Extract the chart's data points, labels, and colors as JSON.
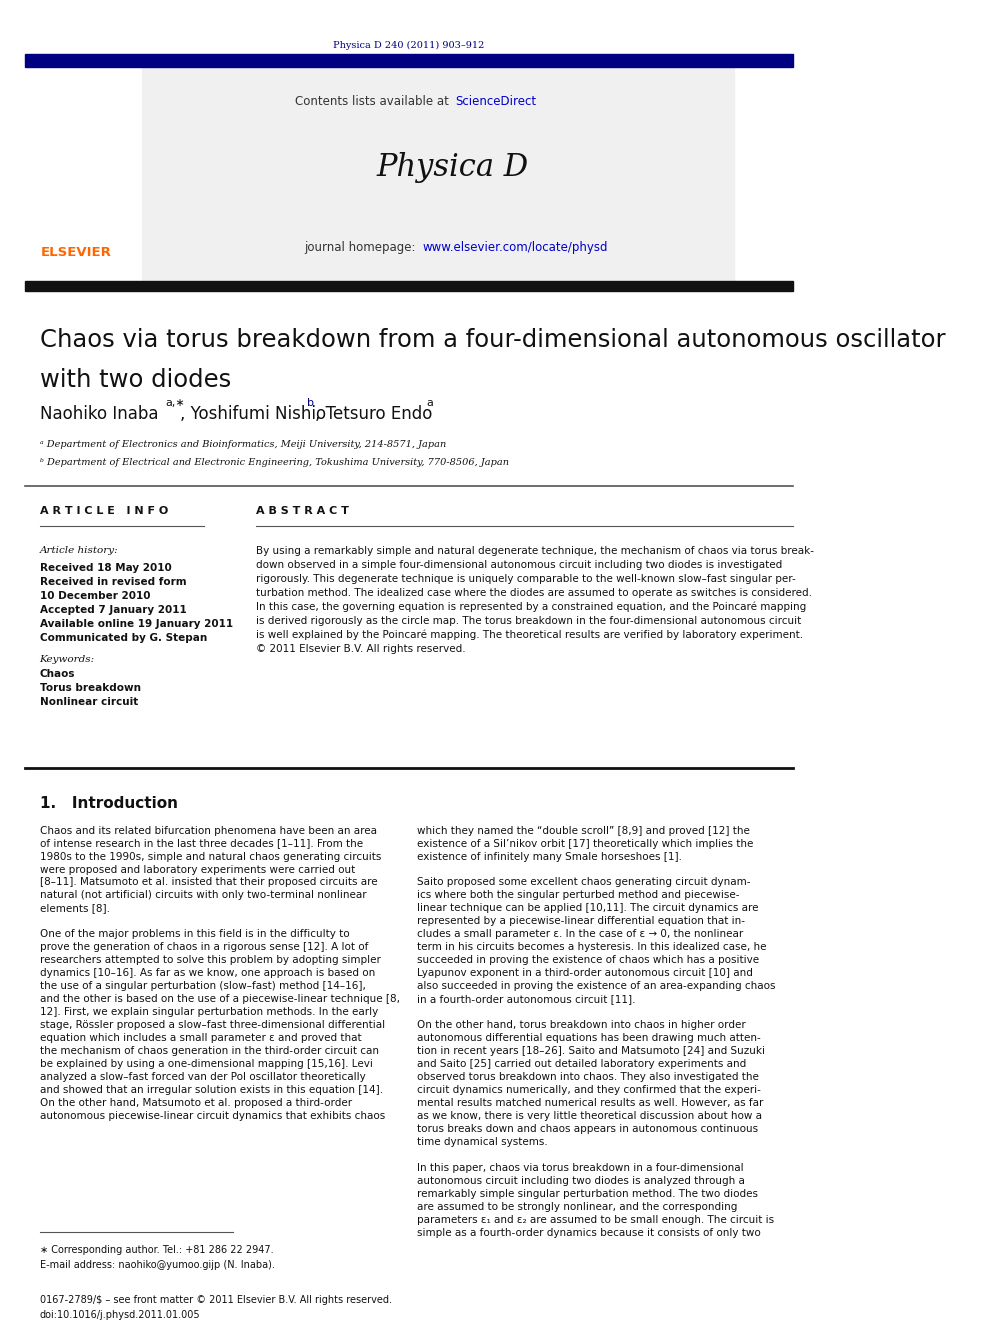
{
  "page_width": 9.92,
  "page_height": 13.23,
  "bg_color": "#ffffff",
  "header_journal_ref": "Physica D 240 (2011) 903–912",
  "header_ref_color": "#000080",
  "journal_name": "Physica D",
  "journal_homepage_text": "journal homepage: ",
  "journal_url": "www.elsevier.com/locate/physd",
  "contents_text": "Contents lists available at ",
  "sciencedirect_text": "ScienceDirect",
  "elsevier_color": "#ff6600",
  "link_color": "#0000cc",
  "dark_blue": "#000080",
  "paper_title_line1": "Chaos via torus breakdown from a four-dimensional autonomous oscillator",
  "paper_title_line2": "with two diodes",
  "authors_main": "Naohiko Inaba",
  "authors_sup1": "a,∗",
  "authors_mid": ", Yoshifumi Nishio",
  "authors_sup2": "b",
  "authors_end": ", Tetsuro Endo",
  "authors_sup3": "a",
  "affil_a": "ᵃ Department of Electronics and Bioinformatics, Meiji University, 214-8571, Japan",
  "affil_b": "ᵇ Department of Electrical and Electronic Engineering, Tokushima University, 770-8506, Japan",
  "article_info_header": "A R T I C L E   I N F O",
  "abstract_header": "A B S T R A C T",
  "article_history_label": "Article history:",
  "history_lines": [
    "Received 18 May 2010",
    "Received in revised form",
    "10 December 2010",
    "Accepted 7 January 2011",
    "Available online 19 January 2011",
    "Communicated by G. Stepan"
  ],
  "keywords_label": "Keywords:",
  "keywords": [
    "Chaos",
    "Torus breakdown",
    "Nonlinear circuit"
  ],
  "abstract_lines": [
    "By using a remarkably simple and natural degenerate technique, the mechanism of chaos via torus break-",
    "down observed in a simple four-dimensional autonomous circuit including two diodes is investigated",
    "rigorously. This degenerate technique is uniquely comparable to the well-known slow–fast singular per-",
    "turbation method. The idealized case where the diodes are assumed to operate as switches is considered.",
    "In this case, the governing equation is represented by a constrained equation, and the Poincaré mapping",
    "is derived rigorously as the circle map. The torus breakdown in the four-dimensional autonomous circuit",
    "is well explained by the Poincaré mapping. The theoretical results are verified by laboratory experiment.",
    "© 2011 Elsevier B.V. All rights reserved."
  ],
  "intro_header": "1.   Introduction",
  "col1_lines": [
    "Chaos and its related bifurcation phenomena have been an area",
    "of intense research in the last three decades [1–11]. From the",
    "1980s to the 1990s, simple and natural chaos generating circuits",
    "were proposed and laboratory experiments were carried out",
    "[8–11]. Matsumoto et al. insisted that their proposed circuits are",
    "natural (not artificial) circuits with only two-terminal nonlinear",
    "elements [8].",
    "",
    "One of the major problems in this field is in the difficulty to",
    "prove the generation of chaos in a rigorous sense [12]. A lot of",
    "researchers attempted to solve this problem by adopting simpler",
    "dynamics [10–16]. As far as we know, one approach is based on",
    "the use of a singular perturbation (slow–fast) method [14–16],",
    "and the other is based on the use of a piecewise-linear technique [8,",
    "12]. First, we explain singular perturbation methods. In the early",
    "stage, Rössler proposed a slow–fast three-dimensional differential",
    "equation which includes a small parameter ε and proved that",
    "the mechanism of chaos generation in the third-order circuit can",
    "be explained by using a one-dimensional mapping [15,16]. Levi",
    "analyzed a slow–fast forced van der Pol oscillator theoretically",
    "and showed that an irregular solution exists in this equation [14].",
    "On the other hand, Matsumoto et al. proposed a third-order",
    "autonomous piecewise-linear circuit dynamics that exhibits chaos"
  ],
  "col2_lines": [
    "which they named the “double scroll” [8,9] and proved [12] the",
    "existence of a Sil’nikov orbit [17] theoretically which implies the",
    "existence of infinitely many Smale horseshoes [1].",
    "",
    "Saito proposed some excellent chaos generating circuit dynam-",
    "ics where both the singular perturbed method and piecewise-",
    "linear technique can be applied [10,11]. The circuit dynamics are",
    "represented by a piecewise-linear differential equation that in-",
    "cludes a small parameter ε. In the case of ε → 0, the nonlinear",
    "term in his circuits becomes a hysteresis. In this idealized case, he",
    "succeeded in proving the existence of chaos which has a positive",
    "Lyapunov exponent in a third-order autonomous circuit [10] and",
    "also succeeded in proving the existence of an area-expanding chaos",
    "in a fourth-order autonomous circuit [11].",
    "",
    "On the other hand, torus breakdown into chaos in higher order",
    "autonomous differential equations has been drawing much atten-",
    "tion in recent years [18–26]. Saito and Matsumoto [24] and Suzuki",
    "and Saito [25] carried out detailed laboratory experiments and",
    "observed torus breakdown into chaos. They also investigated the",
    "circuit dynamics numerically, and they confirmed that the experi-",
    "mental results matched numerical results as well. However, as far",
    "as we know, there is very little theoretical discussion about how a",
    "torus breaks down and chaos appears in autonomous continuous",
    "time dynamical systems.",
    "",
    "In this paper, chaos via torus breakdown in a four-dimensional",
    "autonomous circuit including two diodes is analyzed through a",
    "remarkably simple singular perturbation method. The two diodes",
    "are assumed to be strongly nonlinear, and the corresponding",
    "parameters ε₁ and ε₂ are assumed to be small enough. The circuit is",
    "simple as a fourth-order dynamics because it consists of only two"
  ],
  "footnote_star": "∗ Corresponding author. Tel.: +81 286 22 2947.",
  "footnote_email": "E-mail address: naohiko@yumoo.gijp (N. Inaba).",
  "footer_issn": "0167-2789/$ – see front matter © 2011 Elsevier B.V. All rights reserved.",
  "footer_doi": "doi:10.1016/j.physd.2011.01.005",
  "header_bar_color": "#000080",
  "gray_box_color": "#f0f0f0"
}
